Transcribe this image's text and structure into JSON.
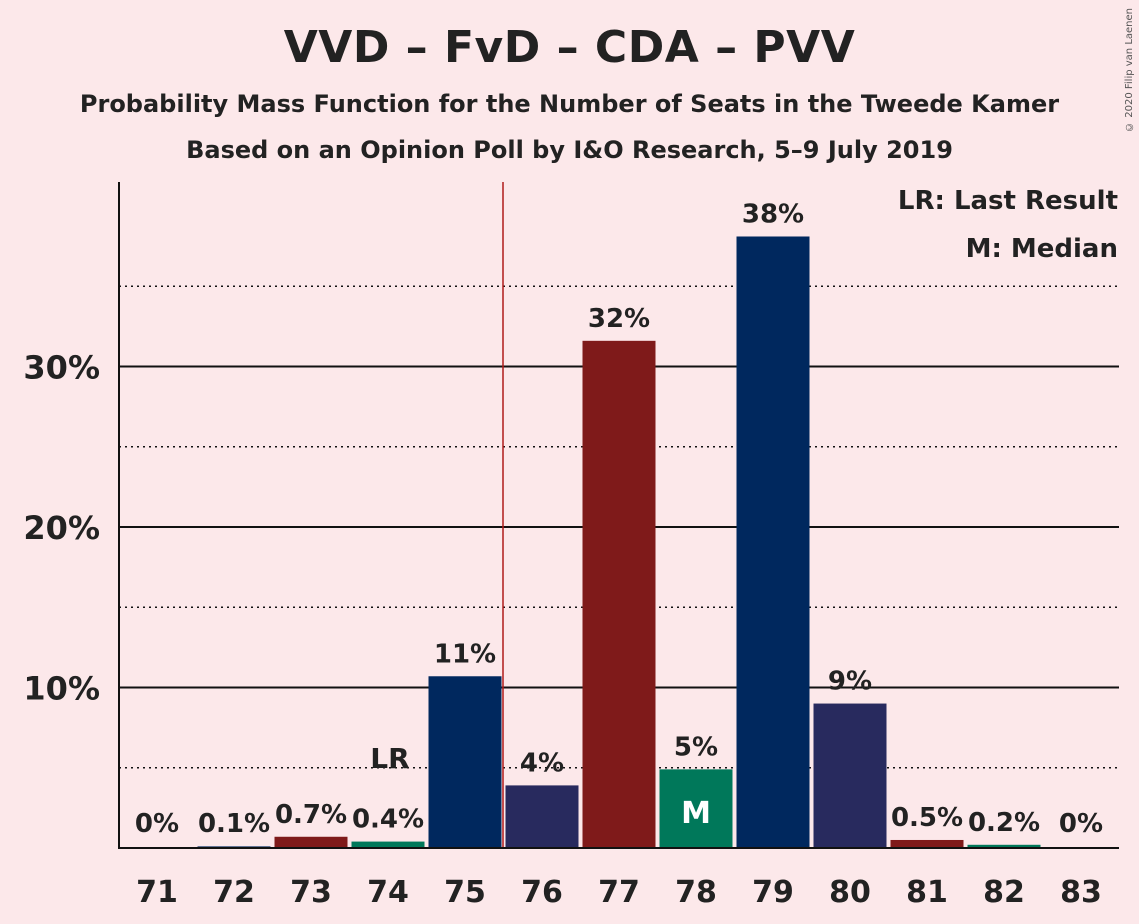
{
  "title": "VVD – FvD – CDA – PVV",
  "subtitle": "Probability Mass Function for the Number of Seats in the Tweede Kamer",
  "subtitle2": "Based on an Opinion Poll by I&O Research, 5–9 July 2019",
  "copyright": "© 2020 Filip van Laenen",
  "legend": {
    "lr": "LR: Last Result",
    "m": "M: Median"
  },
  "chart_data": {
    "type": "bar",
    "categories": [
      "71",
      "72",
      "73",
      "74",
      "75",
      "76",
      "77",
      "78",
      "79",
      "80",
      "81",
      "82",
      "83"
    ],
    "values": [
      0,
      0.1,
      0.7,
      0.4,
      10.7,
      3.9,
      31.6,
      4.9,
      38.1,
      9.0,
      0.5,
      0.2,
      0
    ],
    "labels": [
      "0%",
      "0.1%",
      "0.7%",
      "0.4%",
      "11%",
      "4%",
      "32%",
      "5%",
      "38%",
      "9%",
      "0.5%",
      "0.2%",
      "0%"
    ],
    "colors": [
      "#00285e",
      "#00285e",
      "#7f1a1a",
      "#00785a",
      "#00285e",
      "#282a5e",
      "#7f1a1a",
      "#00785a",
      "#00285e",
      "#282a5e",
      "#7f1a1a",
      "#00785a",
      "#00285e"
    ],
    "ylim": [
      0,
      41.5
    ],
    "yticks": [
      10,
      20,
      30
    ],
    "ytick_labels": [
      "10%",
      "20%",
      "30%"
    ],
    "dotted_lines": [
      5,
      15,
      25,
      35
    ],
    "majority_line_after": "75",
    "last_result": "74",
    "last_result_label": "LR",
    "median": "78",
    "median_label": "M",
    "grid": true,
    "legend_position": "top-right"
  }
}
